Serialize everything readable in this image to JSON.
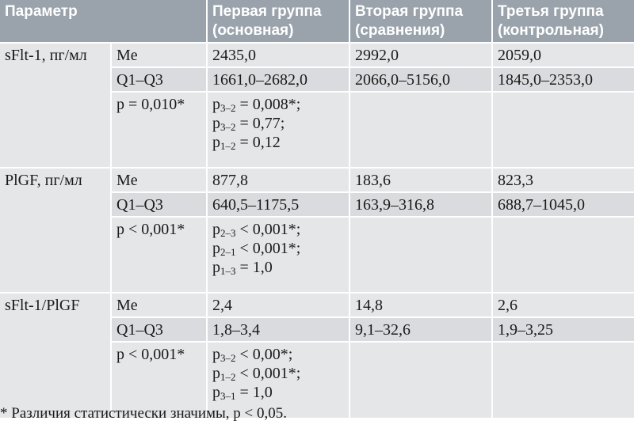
{
  "header": {
    "parameter": "Параметр",
    "group1": [
      "Первая группа",
      "(основная)"
    ],
    "group2": [
      "Вторая группа",
      "(сравнения)"
    ],
    "group3": [
      "Третья группа",
      "(контрольная)"
    ]
  },
  "blocks": [
    {
      "parameter": "sFlt-1, пг/мл",
      "me": {
        "label": "Me",
        "g1": "2435,0",
        "g2": "2992,0",
        "g3": "2059,0"
      },
      "q": {
        "label": "Q1–Q3",
        "g1": "1661,0–2682,0",
        "g2": "2066,0–5156,0",
        "g3": "1845,0–2353,0"
      },
      "p": {
        "label": "p = 0,010*",
        "lines": [
          {
            "base": "p",
            "sub": "3–2",
            "rest": " = 0,008*;"
          },
          {
            "base": "p",
            "sub": "3–2",
            "rest": " = 0,77;"
          },
          {
            "base": "p",
            "sub": "1–2",
            "rest": " = 0,12"
          }
        ]
      }
    },
    {
      "parameter": "PlGF, пг/мл",
      "me": {
        "label": "Me",
        "g1": "877,8",
        "g2": "183,6",
        "g3": "823,3"
      },
      "q": {
        "label": "Q1–Q3",
        "g1": "640,5–1175,5",
        "g2": "163,9–316,8",
        "g3": "688,7–1045,0"
      },
      "p": {
        "label": "p < 0,001*",
        "lines": [
          {
            "base": "p",
            "sub": "2–3",
            "rest": " < 0,001*;"
          },
          {
            "base": "p",
            "sub": "2–1",
            "rest": " < 0,001*;"
          },
          {
            "base": "p",
            "sub": "1–3",
            "rest": " = 1,0"
          }
        ]
      }
    },
    {
      "parameter": "sFlt-1/PlGF",
      "me": {
        "label": "Me",
        "g1": "2,4",
        "g2": "14,8",
        "g3": "2,6"
      },
      "q": {
        "label": "Q1–Q3",
        "g1": "1,8–3,4",
        "g2": "9,1–32,6",
        "g3": "1,9–3,25"
      },
      "p": {
        "label": "p < 0,001*",
        "lines": [
          {
            "base": "p",
            "sub": "3–2",
            "rest": " < 0,00*;"
          },
          {
            "base": "p",
            "sub": "1–2",
            "rest": " < 0,001*;"
          },
          {
            "base": "p",
            "sub": "3–1",
            "rest": " = 1,0"
          }
        ]
      }
    }
  ],
  "footnote": "* Различия статистически значимы, p < 0,05."
}
